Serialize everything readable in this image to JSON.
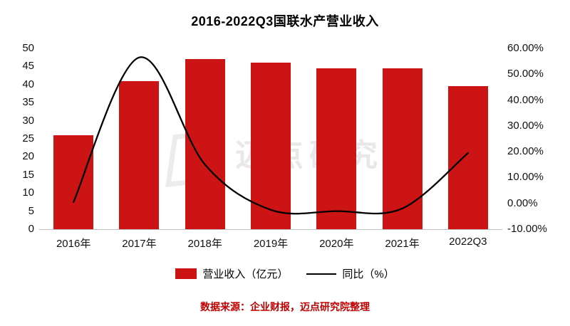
{
  "title": "2016-2022Q3国联水产营业收入",
  "watermark": "迈点研究院",
  "footer": "数据来源：企业财报，迈点研究院整理",
  "legend": [
    {
      "label": "营业收入（亿元）",
      "type": "bar"
    },
    {
      "label": "同比（%）",
      "type": "line"
    }
  ],
  "colors": {
    "bar": "#CC1414",
    "line": "#000000",
    "footer": "#C00000",
    "axis_line": "#BFBFBF"
  },
  "chart_data": {
    "type": "bar",
    "subtype": "bar+line combo",
    "title": "2016-2022Q3国联水产营业收入",
    "categories": [
      "2016年",
      "2017年",
      "2018年",
      "2019年",
      "2020年",
      "2021年",
      "2022Q3"
    ],
    "series": [
      {
        "name": "营业收入（亿元）",
        "type": "bar",
        "axis": "left",
        "values": [
          26,
          41,
          47,
          46,
          44.5,
          44.5,
          39.5
        ]
      },
      {
        "name": "同比（%）",
        "type": "line",
        "axis": "right",
        "values": [
          0.5,
          56.5,
          15,
          -2.5,
          -3,
          -2,
          19.5
        ]
      }
    ],
    "left_axis": {
      "min": 0,
      "max": 50,
      "ticks": [
        "0",
        "5",
        "10",
        "15",
        "20",
        "25",
        "30",
        "35",
        "40",
        "45",
        "50"
      ]
    },
    "right_axis": {
      "min": -10,
      "max": 60,
      "ticks": [
        "-10.00%",
        "0.00%",
        "10.00%",
        "20.00%",
        "30.00%",
        "40.00%",
        "50.00%",
        "60.00%"
      ]
    },
    "grid": false,
    "legend_position": "bottom"
  }
}
